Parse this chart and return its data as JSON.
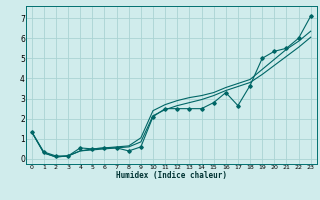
{
  "x": [
    0,
    1,
    2,
    3,
    4,
    5,
    6,
    7,
    8,
    9,
    10,
    11,
    12,
    13,
    14,
    15,
    16,
    17,
    18,
    19,
    20,
    21,
    22,
    23
  ],
  "y_main": [
    1.35,
    0.35,
    0.15,
    0.15,
    0.55,
    0.5,
    0.55,
    0.55,
    0.4,
    0.6,
    2.1,
    2.5,
    2.5,
    2.5,
    2.5,
    2.8,
    3.3,
    2.65,
    3.65,
    5.0,
    5.35,
    5.5,
    6.0,
    7.1
  ],
  "y_line1": [
    1.35,
    0.3,
    0.1,
    0.15,
    0.4,
    0.5,
    0.55,
    0.6,
    0.65,
    1.05,
    2.4,
    2.7,
    2.9,
    3.05,
    3.15,
    3.3,
    3.55,
    3.75,
    3.95,
    4.45,
    4.95,
    5.45,
    5.85,
    6.35
  ],
  "y_line2": [
    1.35,
    0.3,
    0.1,
    0.15,
    0.4,
    0.45,
    0.5,
    0.55,
    0.6,
    0.85,
    2.15,
    2.45,
    2.65,
    2.8,
    2.95,
    3.15,
    3.4,
    3.6,
    3.8,
    4.2,
    4.65,
    5.1,
    5.55,
    6.05
  ],
  "line_color": "#006666",
  "bg_color": "#d0ecec",
  "grid_color": "#aad4d4",
  "xlabel": "Humidex (Indice chaleur)",
  "ylim": [
    -0.25,
    7.6
  ],
  "xlim": [
    -0.5,
    23.5
  ],
  "yticks": [
    0,
    1,
    2,
    3,
    4,
    5,
    6,
    7
  ],
  "xticks": [
    0,
    1,
    2,
    3,
    4,
    5,
    6,
    7,
    8,
    9,
    10,
    11,
    12,
    13,
    14,
    15,
    16,
    17,
    18,
    19,
    20,
    21,
    22,
    23
  ]
}
